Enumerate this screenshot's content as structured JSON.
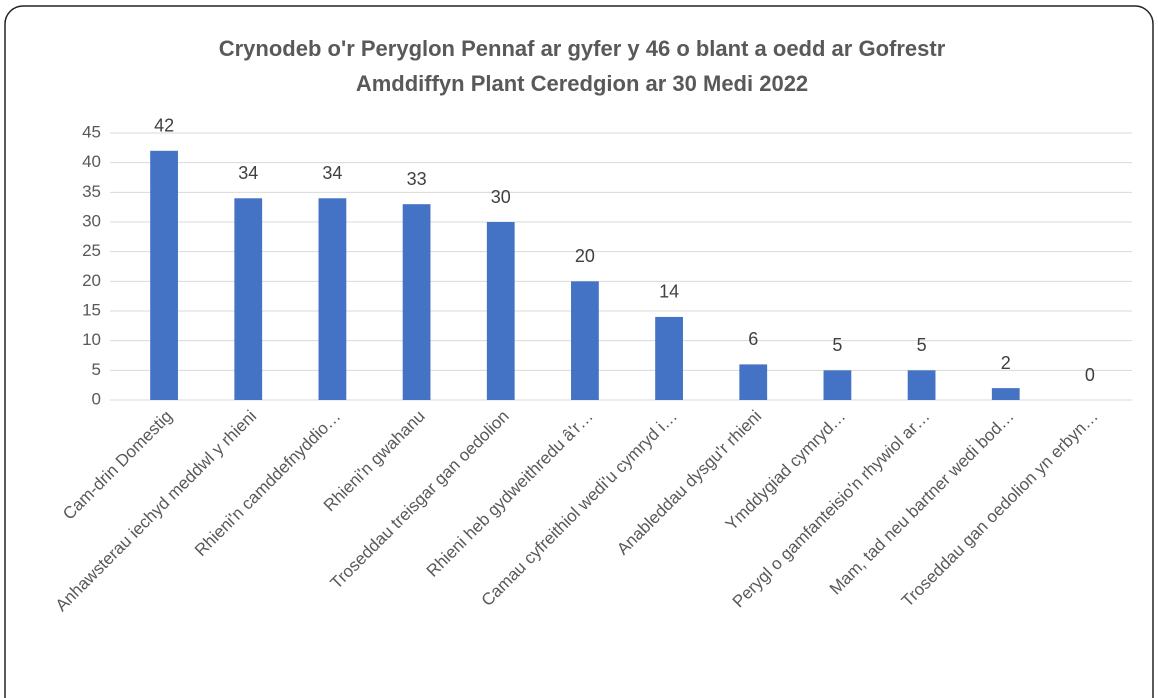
{
  "chart_data": {
    "type": "bar",
    "title": [
      "Crynodeb o'r Peryglon Pennaf ar gyfer y 46 o blant a oedd ar Gofrestr",
      "Amddiffyn Plant Ceredgion ar 30 Medi 2022"
    ],
    "categories": [
      "Cam-drin Domestig",
      "Anhawsterau iechyd meddwl y rhieni",
      "Rhieni'n camddefnyddio…",
      "Rhieni'n gwahanu",
      "Troseddau treisgar gan oedolion",
      "Rhieni heb gydweithredu â'r…",
      "Camau cyfreithiol wedi'u cymryd i…",
      "Anableddau dysgu'r rhieni",
      "Ymddygiad cymryd…",
      "Perygl o gamfanteisio'n rhywiol ar…",
      "Mam, tad neu bartner wedi bod…",
      "Troseddau gan oedolion yn erbyn…"
    ],
    "values": [
      42,
      34,
      34,
      33,
      30,
      20,
      14,
      6,
      5,
      5,
      2,
      0
    ],
    "color": "#4472c4",
    "ylim": [
      0,
      45
    ],
    "yticks": [
      0,
      5,
      10,
      15,
      20,
      25,
      30,
      35,
      40,
      45
    ],
    "grid": true
  }
}
